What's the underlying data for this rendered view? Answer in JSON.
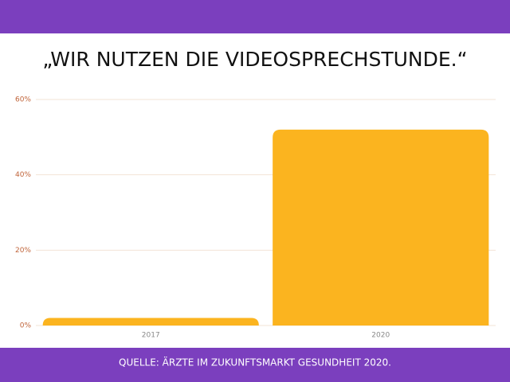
{
  "chart_data": {
    "type": "bar",
    "title": "„WIR NUTZEN DIE VIDEOSPRECHSTUNDE.“",
    "source": "QUELLE: ÄRZTE IM ZUKUNFTSMARKT GESUNDHEIT 2020.",
    "categories": [
      "2017",
      "2020"
    ],
    "values": [
      2,
      52
    ],
    "color": "#fbb41f",
    "ylim": [
      0,
      60
    ],
    "yticks": [
      {
        "value": 0,
        "label": "0%"
      },
      {
        "value": 20,
        "label": "20%"
      },
      {
        "value": 40,
        "label": "40%"
      },
      {
        "value": 60,
        "label": "60%"
      }
    ],
    "grid": true
  }
}
